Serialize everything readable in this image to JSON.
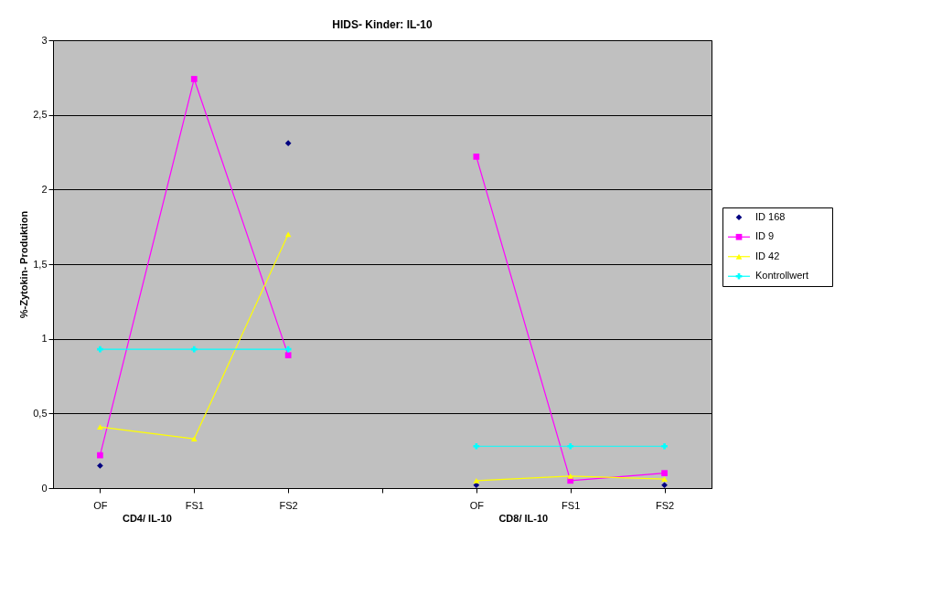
{
  "chart_data": {
    "type": "line",
    "title": "HIDS- Kinder: IL-10",
    "ylabel": "%-Zytokin- Produktion",
    "categories": [
      "OF",
      "FS1",
      "FS2",
      null,
      "OF",
      "FS1",
      "FS2"
    ],
    "series": [
      {
        "name": "ID 168",
        "type": "scatter",
        "color": "#000080",
        "marker": "diamond",
        "values": [
          0.15,
          null,
          2.31,
          null,
          0.02,
          null,
          0.02
        ]
      },
      {
        "name": "ID 9",
        "color": "#ff00ff",
        "marker": "square",
        "values": [
          0.22,
          2.74,
          0.89,
          null,
          2.22,
          0.05,
          0.1
        ]
      },
      {
        "name": "ID 42",
        "color": "#ffff00",
        "marker": "triangle",
        "values": [
          0.41,
          0.33,
          1.7,
          null,
          0.05,
          0.08,
          0.06
        ]
      },
      {
        "name": "Kontrollwert",
        "color": "#00ffff",
        "marker": "cross",
        "values": [
          0.93,
          0.93,
          0.93,
          null,
          0.28,
          0.28,
          0.28
        ]
      }
    ],
    "ylim": [
      0,
      3
    ],
    "yticks": [
      0,
      {
        "value": 0.5,
        "label": "0,5"
      },
      1,
      {
        "value": 1.5,
        "label": "1,5"
      },
      2,
      {
        "value": 2.5,
        "label": "2,5"
      },
      3
    ],
    "grid": "y",
    "legend": "right",
    "line_style": "solid",
    "annotations": [
      "CD4/ IL-10",
      "CD8/ IL-10"
    ]
  }
}
